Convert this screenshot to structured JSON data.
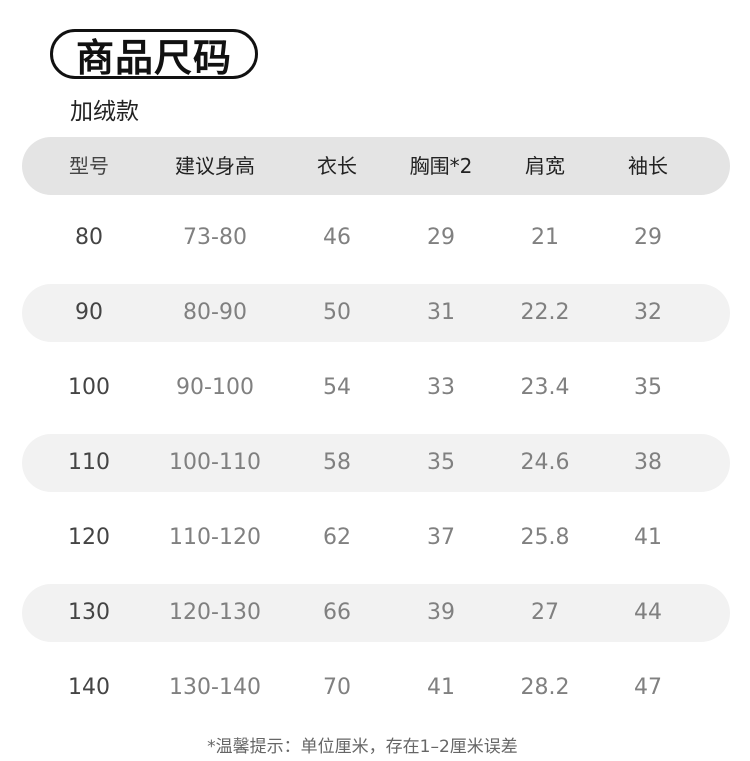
{
  "title": "商品尺码",
  "subtitle": "加绒款",
  "headers": [
    "型号",
    "建议身高",
    "衣长",
    "胸围*2",
    "肩宽",
    "袖长"
  ],
  "rows": [
    [
      "80",
      "73-80",
      "46",
      "29",
      "21",
      "29"
    ],
    [
      "90",
      "80-90",
      "50",
      "31",
      "22.2",
      "32"
    ],
    [
      "100",
      "90-100",
      "54",
      "33",
      "23.4",
      "35"
    ],
    [
      "110",
      "100-110",
      "58",
      "35",
      "24.6",
      "38"
    ],
    [
      "120",
      "110-120",
      "62",
      "37",
      "25.8",
      "41"
    ],
    [
      "130",
      "120-130",
      "66",
      "39",
      "27",
      "44"
    ],
    [
      "140",
      "130-140",
      "70",
      "41",
      "28.2",
      "47"
    ]
  ],
  "note": "*温馨提示：单位厘米，存在1–2厘米误差"
}
